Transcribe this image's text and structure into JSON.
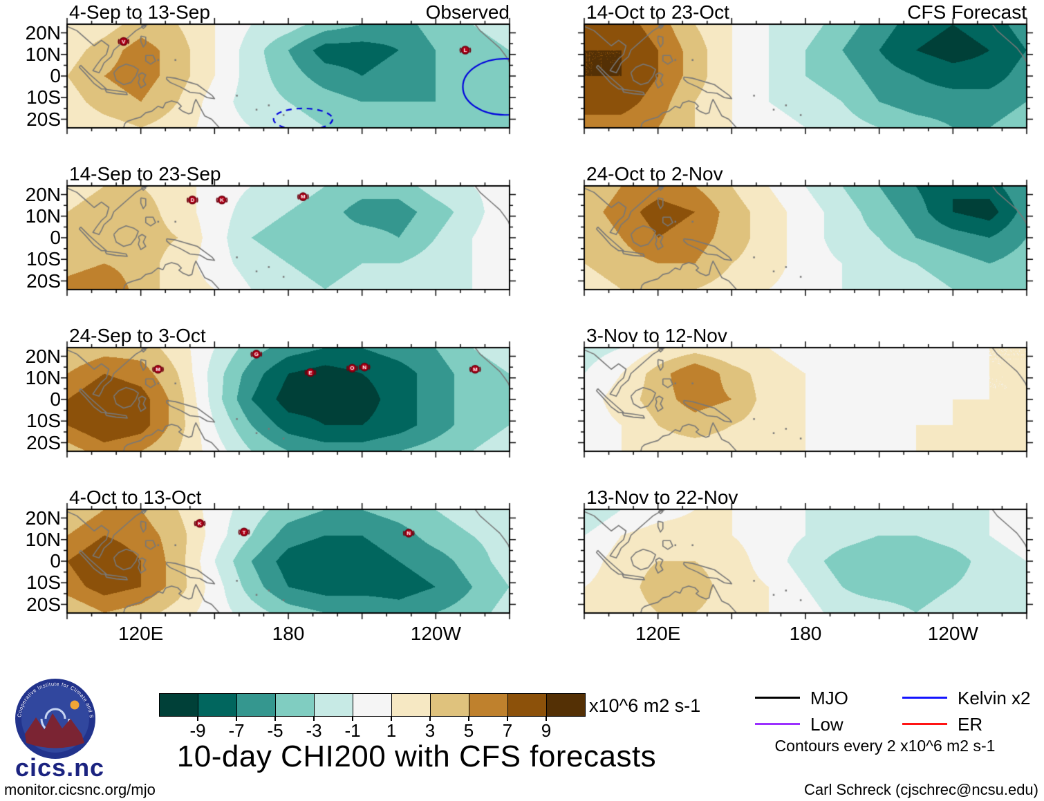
{
  "title": "10-day CHI200 with CFS forecasts",
  "columns": [
    {
      "header": "Observed"
    },
    {
      "header": "CFS Forecast"
    }
  ],
  "axes": {
    "lat_tick_labels": [
      "20N",
      "10N",
      "0",
      "10S",
      "20S"
    ],
    "lat_tick_values": [
      20,
      10,
      0,
      -10,
      -20
    ],
    "lon_tick_labels": [
      "120E",
      "180",
      "120W"
    ],
    "lon_tick_values": [
      120,
      180,
      240
    ],
    "lon_range": [
      90,
      270
    ],
    "lat_range": [
      24,
      -24
    ]
  },
  "colorbar": {
    "levels": [
      -9,
      -7,
      -5,
      -3,
      -1,
      1,
      3,
      5,
      7,
      9
    ],
    "tick_labels": [
      "-9",
      "-7",
      "-5",
      "-3",
      "-1",
      "1",
      "3",
      "5",
      "7",
      "9"
    ],
    "colors": [
      "#004038",
      "#01665e",
      "#35978f",
      "#80cdc1",
      "#c7eae5",
      "#f5f5f5",
      "#f6e8c3",
      "#dfc27d",
      "#bf812d",
      "#8c510a",
      "#543005"
    ],
    "units": "x10^6 m2 s-1"
  },
  "legend": {
    "items": [
      {
        "label": "MJO",
        "color": "#000000"
      },
      {
        "label": "Low",
        "color": "#9b30ff"
      },
      {
        "label": "Kelvin x2",
        "color": "#1414ff"
      },
      {
        "label": "ER",
        "color": "#ff1414"
      }
    ],
    "note": "Contours every 2 x10^6 m2 s-1"
  },
  "logo": {
    "ring_text": "Cooperative Institute for Climate and Satellites",
    "text": "cics.nc"
  },
  "footer": {
    "left": "monitor.cicsnc.org/mjo",
    "right": "Carl Schreck (cjschrec@ncsu.edu)"
  },
  "chart_data": {
    "type": "heatmap",
    "units": "x10^6 m2 s-1",
    "lons": [
      90,
      105,
      120,
      135,
      150,
      165,
      180,
      195,
      210,
      225,
      240,
      255,
      270
    ],
    "lats": [
      24,
      12,
      0,
      -12,
      -24
    ],
    "panels": [
      {
        "title": "4-Sep to 13-Sep",
        "group": "Observed",
        "row": 0,
        "col": 0,
        "values": [
          [
            1,
            2,
            4,
            3,
            1,
            -1,
            -2,
            -4,
            -5,
            -6,
            -4,
            -3,
            -2
          ],
          [
            2,
            4,
            6,
            4,
            1,
            -2,
            -5,
            -8,
            -8,
            -7,
            -5,
            -4,
            -3
          ],
          [
            3,
            5,
            6,
            4,
            1,
            -2,
            -4,
            -6,
            -7,
            -6,
            -5,
            -4,
            -4
          ],
          [
            2,
            4,
            5,
            3,
            0,
            -2,
            -3,
            -4,
            -5,
            -5,
            -5,
            -4,
            -5
          ],
          [
            1,
            2,
            3,
            2,
            0,
            -1,
            -2,
            -3,
            -3,
            -4,
            -4,
            -3,
            -4
          ]
        ],
        "storms": [
          {
            "letter": "V",
            "lon": 113,
            "lat": 16
          },
          {
            "letter": "L",
            "lon": 252,
            "lat": 12
          }
        ],
        "overlays": [
          {
            "shape": "ellipse",
            "color": "#0000dd",
            "dash": false,
            "lon": 268,
            "lat": -5,
            "rlon": 17,
            "rlat": 13
          },
          {
            "shape": "ellipse",
            "color": "#0000dd",
            "dash": true,
            "lon": 186,
            "lat": -20,
            "rlon": 12,
            "rlat": 5
          }
        ]
      },
      {
        "title": "14-Sep to 23-Sep",
        "group": "Observed",
        "row": 1,
        "col": 0,
        "values": [
          [
            2,
            3,
            3,
            2,
            0,
            -1,
            -2,
            -3,
            -4,
            -4,
            -2,
            -1,
            0
          ],
          [
            3,
            4,
            4,
            2,
            0,
            -2,
            -3,
            -4,
            -6,
            -6,
            -4,
            -2,
            1
          ],
          [
            3,
            4,
            4,
            3,
            0,
            -3,
            -4,
            -4,
            -4,
            -5,
            -3,
            -1,
            1
          ],
          [
            4,
            5,
            4,
            2,
            0,
            -2,
            -3,
            -4,
            -3,
            -3,
            -2,
            -1,
            0
          ],
          [
            6,
            7,
            4,
            2,
            1,
            -1,
            -2,
            -3,
            -2,
            -2,
            -1,
            -1,
            0
          ]
        ],
        "storms": [
          {
            "letter": "D",
            "lon": 141,
            "lat": 17.5
          },
          {
            "letter": "K",
            "lon": 153,
            "lat": 17.5
          },
          {
            "letter": "M",
            "lon": 186,
            "lat": 19
          }
        ],
        "overlays": []
      },
      {
        "title": "24-Sep to 3-Oct",
        "group": "Observed",
        "row": 2,
        "col": 0,
        "values": [
          [
            3,
            4,
            4,
            2,
            -1,
            -4,
            -6,
            -7,
            -7,
            -6,
            -5,
            -3,
            -2
          ],
          [
            5,
            7,
            6,
            3,
            -2,
            -6,
            -9,
            -10,
            -9,
            -8,
            -6,
            -4,
            -3
          ],
          [
            7,
            9,
            8,
            4,
            -2,
            -7,
            -10,
            -10,
            -10,
            -8,
            -6,
            -4,
            -3
          ],
          [
            7,
            9,
            8,
            4,
            -1,
            -5,
            -8,
            -9,
            -9,
            -8,
            -6,
            -4,
            -3
          ],
          [
            4,
            6,
            5,
            3,
            0,
            -3,
            -5,
            -6,
            -6,
            -5,
            -4,
            -3,
            -2
          ]
        ],
        "storms": [
          {
            "letter": "M",
            "lon": 127,
            "lat": 14
          },
          {
            "letter": "G",
            "lon": 167,
            "lat": 21
          },
          {
            "letter": "E",
            "lon": 189,
            "lat": 12.5
          },
          {
            "letter": "O",
            "lon": 206,
            "lat": 14.5
          },
          {
            "letter": "N",
            "lon": 211,
            "lat": 15
          },
          {
            "letter": "M",
            "lon": 256,
            "lat": 14
          }
        ],
        "overlays": []
      },
      {
        "title": "4-Oct to 13-Oct",
        "group": "Observed",
        "row": 3,
        "col": 0,
        "values": [
          [
            3,
            5,
            5,
            3,
            0,
            -2,
            -4,
            -5,
            -5,
            -4,
            -3,
            -2,
            -1
          ],
          [
            5,
            7,
            6,
            4,
            0,
            -3,
            -6,
            -7,
            -7,
            -6,
            -4,
            -3,
            -2
          ],
          [
            7,
            9,
            7,
            4,
            -1,
            -5,
            -8,
            -9,
            -8,
            -7,
            -6,
            -4,
            -2
          ],
          [
            6,
            8,
            7,
            4,
            0,
            -4,
            -7,
            -8,
            -8,
            -8,
            -7,
            -5,
            -3
          ],
          [
            3,
            5,
            4,
            2,
            0,
            -2,
            -4,
            -5,
            -5,
            -6,
            -5,
            -4,
            -2
          ]
        ],
        "storms": [
          {
            "letter": "K",
            "lon": 144,
            "lat": 17.5
          },
          {
            "letter": "T",
            "lon": 162,
            "lat": 13.5
          },
          {
            "letter": "N",
            "lon": 229,
            "lat": 13
          }
        ],
        "overlays": []
      },
      {
        "title": "14-Oct to 23-Oct",
        "group": "CFS Forecast",
        "row": 0,
        "col": 1,
        "values": [
          [
            7,
            8,
            6,
            3,
            1,
            -1,
            -2,
            -4,
            -6,
            -8,
            -9,
            -8,
            -6
          ],
          [
            9,
            9,
            7,
            4,
            1,
            -1,
            -3,
            -5,
            -7,
            -9,
            -10,
            -9,
            -7
          ],
          [
            9,
            9,
            7,
            4,
            1,
            -1,
            -3,
            -4,
            -6,
            -7,
            -8,
            -8,
            -6
          ],
          [
            8,
            8,
            6,
            3,
            1,
            -1,
            -2,
            -3,
            -5,
            -6,
            -6,
            -6,
            -5
          ],
          [
            6,
            6,
            5,
            3,
            1,
            0,
            -1,
            -2,
            -3,
            -4,
            -5,
            -5,
            -4
          ]
        ],
        "storms": [],
        "overlays": []
      },
      {
        "title": "24-Oct to 2-Nov",
        "group": "CFS Forecast",
        "row": 1,
        "col": 1,
        "values": [
          [
            3,
            5,
            6,
            5,
            3,
            1,
            -1,
            -3,
            -5,
            -7,
            -9,
            -8,
            -5
          ],
          [
            4,
            6,
            8,
            7,
            4,
            2,
            0,
            -2,
            -4,
            -6,
            -9,
            -10,
            -6
          ],
          [
            3,
            5,
            7,
            6,
            4,
            2,
            0,
            -2,
            -3,
            -5,
            -6,
            -7,
            -5
          ],
          [
            3,
            4,
            5,
            5,
            3,
            2,
            0,
            -1,
            -2,
            -3,
            -4,
            -5,
            -4
          ],
          [
            2,
            3,
            4,
            3,
            2,
            1,
            0,
            -1,
            -1,
            -2,
            -3,
            -3,
            -3
          ]
        ],
        "storms": [],
        "overlays": []
      },
      {
        "title": "3-Nov to 12-Nov",
        "group": "CFS Forecast",
        "row": 2,
        "col": 1,
        "values": [
          [
            -2,
            -1,
            1,
            2,
            1,
            1,
            0,
            0,
            0,
            0,
            0,
            1,
            1
          ],
          [
            -1,
            1,
            4,
            7,
            4,
            2,
            1,
            0,
            0,
            0,
            0,
            1,
            1
          ],
          [
            0,
            2,
            4,
            6,
            5,
            2,
            1,
            0,
            0,
            0,
            1,
            1,
            1
          ],
          [
            0,
            1,
            3,
            4,
            3,
            2,
            1,
            0,
            0,
            1,
            1,
            2,
            1
          ],
          [
            0,
            1,
            2,
            2,
            2,
            1,
            1,
            0,
            0,
            1,
            2,
            2,
            1
          ]
        ],
        "storms": [],
        "overlays": []
      },
      {
        "title": "13-Nov to 22-Nov",
        "group": "CFS Forecast",
        "row": 3,
        "col": 1,
        "values": [
          [
            -3,
            -1,
            0,
            1,
            1,
            0,
            -1,
            -1,
            -2,
            -2,
            -1,
            -1,
            0
          ],
          [
            -1,
            1,
            2,
            2,
            1,
            0,
            -1,
            -2,
            -3,
            -3,
            -2,
            -1,
            0
          ],
          [
            0,
            2,
            3,
            3,
            2,
            0,
            -2,
            -4,
            -5,
            -5,
            -4,
            -2,
            -1
          ],
          [
            1,
            2,
            4,
            4,
            2,
            1,
            -1,
            -3,
            -4,
            -4,
            -3,
            -2,
            -1
          ],
          [
            1,
            2,
            3,
            3,
            2,
            1,
            0,
            -2,
            -2,
            -3,
            -2,
            -1,
            -1
          ]
        ],
        "storms": [],
        "overlays": []
      }
    ]
  }
}
